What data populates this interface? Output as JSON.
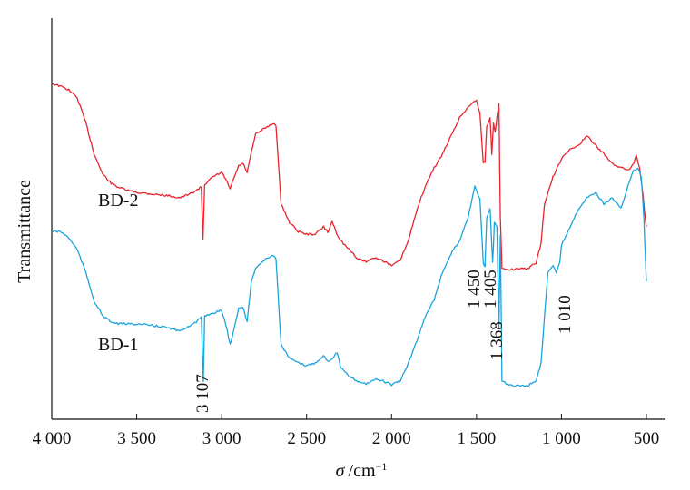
{
  "chart_data": {
    "type": "line",
    "title": "",
    "xlabel_symbol": "σ",
    "xlabel_unit": "/cm",
    "xlabel_exp": "−1",
    "ylabel": "Transmittance",
    "xlim": [
      4000,
      500
    ],
    "x_reversed": true,
    "grid": false,
    "legend": "none",
    "x_ticks": [
      4000,
      3500,
      3000,
      2500,
      2000,
      1500,
      1000,
      500
    ],
    "x_tick_labels": [
      "4 000",
      "3 500",
      "3 000",
      "2 500",
      "2 000",
      "1 500",
      "1 000",
      "500"
    ],
    "y_ticks_shown": false,
    "series": [
      {
        "name": "BD-2",
        "color": "#e8242d",
        "points": [
          [
            4000,
            92
          ],
          [
            3950,
            95
          ],
          [
            3900,
            99
          ],
          [
            3850,
            108
          ],
          [
            3800,
            135
          ],
          [
            3750,
            170
          ],
          [
            3700,
            192
          ],
          [
            3650,
            202
          ],
          [
            3600,
            207
          ],
          [
            3550,
            210
          ],
          [
            3500,
            212
          ],
          [
            3450,
            213
          ],
          [
            3400,
            214
          ],
          [
            3350,
            215
          ],
          [
            3300,
            216
          ],
          [
            3250,
            218
          ],
          [
            3200,
            215
          ],
          [
            3150,
            210
          ],
          [
            3120,
            206
          ],
          [
            3110,
            263
          ],
          [
            3100,
            203
          ],
          [
            3050,
            195
          ],
          [
            3000,
            190
          ],
          [
            2975,
            198
          ],
          [
            2950,
            208
          ],
          [
            2925,
            195
          ],
          [
            2900,
            183
          ],
          [
            2875,
            180
          ],
          [
            2850,
            190
          ],
          [
            2825,
            168
          ],
          [
            2800,
            148
          ],
          [
            2750,
            142
          ],
          [
            2700,
            136
          ],
          [
            2680,
            138
          ],
          [
            2650,
            225
          ],
          [
            2600,
            245
          ],
          [
            2550,
            255
          ],
          [
            2500,
            258
          ],
          [
            2450,
            258
          ],
          [
            2400,
            250
          ],
          [
            2375,
            256
          ],
          [
            2350,
            244
          ],
          [
            2320,
            258
          ],
          [
            2300,
            265
          ],
          [
            2250,
            275
          ],
          [
            2200,
            285
          ],
          [
            2150,
            288
          ],
          [
            2100,
            284
          ],
          [
            2050,
            287
          ],
          [
            2000,
            293
          ],
          [
            1950,
            287
          ],
          [
            1900,
            265
          ],
          [
            1850,
            230
          ],
          [
            1800,
            205
          ],
          [
            1750,
            185
          ],
          [
            1700,
            170
          ],
          [
            1650,
            150
          ],
          [
            1600,
            130
          ],
          [
            1550,
            118
          ],
          [
            1500,
            110
          ],
          [
            1480,
            125
          ],
          [
            1460,
            180
          ],
          [
            1450,
            178
          ],
          [
            1440,
            140
          ],
          [
            1420,
            130
          ],
          [
            1410,
            170
          ],
          [
            1400,
            135
          ],
          [
            1390,
            145
          ],
          [
            1380,
            130
          ],
          [
            1368,
            115
          ],
          [
            1360,
            240
          ],
          [
            1350,
            295
          ],
          [
            1300,
            297
          ],
          [
            1200,
            296
          ],
          [
            1150,
            290
          ],
          [
            1120,
            268
          ],
          [
            1100,
            225
          ],
          [
            1050,
            195
          ],
          [
            1000,
            175
          ],
          [
            950,
            165
          ],
          [
            900,
            160
          ],
          [
            850,
            150
          ],
          [
            800,
            160
          ],
          [
            750,
            170
          ],
          [
            700,
            180
          ],
          [
            650,
            185
          ],
          [
            600,
            187
          ],
          [
            575,
            180
          ],
          [
            560,
            170
          ],
          [
            540,
            185
          ],
          [
            520,
            215
          ],
          [
            505,
            245
          ],
          [
            500,
            250
          ]
        ]
      },
      {
        "name": "BD-1",
        "color": "#1aa3dd",
        "points": [
          [
            4000,
            255
          ],
          [
            3950,
            255
          ],
          [
            3900,
            262
          ],
          [
            3850,
            275
          ],
          [
            3800,
            300
          ],
          [
            3750,
            332
          ],
          [
            3700,
            348
          ],
          [
            3650,
            355
          ],
          [
            3600,
            357
          ],
          [
            3550,
            357
          ],
          [
            3500,
            357
          ],
          [
            3450,
            358
          ],
          [
            3400,
            359
          ],
          [
            3350,
            360
          ],
          [
            3300,
            362
          ],
          [
            3250,
            365
          ],
          [
            3200,
            360
          ],
          [
            3150,
            355
          ],
          [
            3120,
            350
          ],
          [
            3108,
            420
          ],
          [
            3100,
            348
          ],
          [
            3050,
            345
          ],
          [
            3000,
            342
          ],
          [
            2975,
            358
          ],
          [
            2950,
            380
          ],
          [
            2925,
            360
          ],
          [
            2900,
            340
          ],
          [
            2875,
            338
          ],
          [
            2850,
            355
          ],
          [
            2825,
            310
          ],
          [
            2800,
            295
          ],
          [
            2750,
            287
          ],
          [
            2700,
            281
          ],
          [
            2680,
            285
          ],
          [
            2650,
            380
          ],
          [
            2600,
            395
          ],
          [
            2550,
            400
          ],
          [
            2500,
            403
          ],
          [
            2450,
            400
          ],
          [
            2400,
            392
          ],
          [
            2375,
            398
          ],
          [
            2350,
            395
          ],
          [
            2320,
            388
          ],
          [
            2300,
            405
          ],
          [
            2250,
            415
          ],
          [
            2200,
            420
          ],
          [
            2150,
            423
          ],
          [
            2100,
            418
          ],
          [
            2050,
            420
          ],
          [
            2000,
            424
          ],
          [
            1950,
            420
          ],
          [
            1900,
            400
          ],
          [
            1850,
            375
          ],
          [
            1800,
            348
          ],
          [
            1750,
            330
          ],
          [
            1700,
            300
          ],
          [
            1650,
            280
          ],
          [
            1600,
            265
          ],
          [
            1550,
            240
          ],
          [
            1510,
            205
          ],
          [
            1480,
            220
          ],
          [
            1460,
            290
          ],
          [
            1450,
            295
          ],
          [
            1440,
            240
          ],
          [
            1420,
            230
          ],
          [
            1405,
            290
          ],
          [
            1395,
            245
          ],
          [
            1380,
            250
          ],
          [
            1368,
            360
          ],
          [
            1360,
            260
          ],
          [
            1350,
            420
          ],
          [
            1300,
            425
          ],
          [
            1200,
            425
          ],
          [
            1150,
            420
          ],
          [
            1120,
            400
          ],
          [
            1100,
            350
          ],
          [
            1080,
            300
          ],
          [
            1050,
            292
          ],
          [
            1030,
            300
          ],
          [
            1010,
            290
          ],
          [
            1000,
            270
          ],
          [
            950,
            250
          ],
          [
            900,
            230
          ],
          [
            850,
            218
          ],
          [
            800,
            212
          ],
          [
            750,
            225
          ],
          [
            700,
            218
          ],
          [
            650,
            230
          ],
          [
            600,
            200
          ],
          [
            575,
            188
          ],
          [
            550,
            185
          ],
          [
            530,
            195
          ],
          [
            515,
            240
          ],
          [
            505,
            290
          ],
          [
            500,
            310
          ]
        ]
      }
    ],
    "annotations": [
      {
        "text": "3 107",
        "x": 3107
      },
      {
        "text": "1 450",
        "x": 1450
      },
      {
        "text": "1 405",
        "x": 1405
      },
      {
        "text": "1 368",
        "x": 1368
      },
      {
        "text": "1 010",
        "x": 1010
      }
    ]
  }
}
